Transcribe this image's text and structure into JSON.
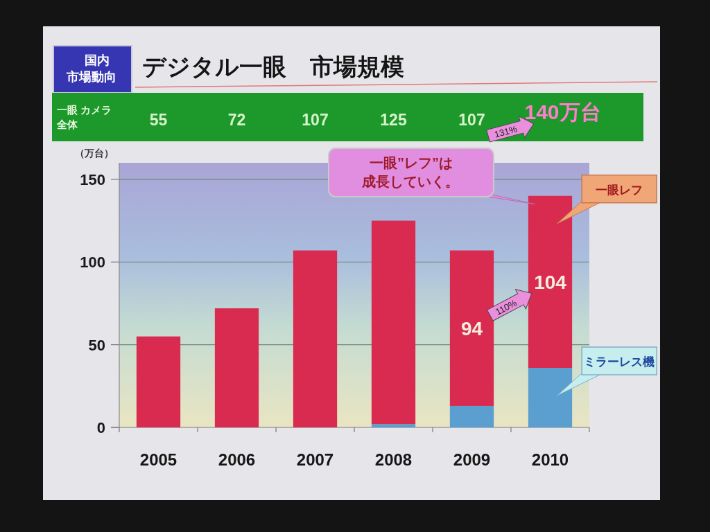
{
  "chart_data": {
    "type": "bar",
    "title": "デジタル一眼　市場規模",
    "subtitle": "国内市場動向",
    "ylabel": "（万台）",
    "categories": [
      "2005",
      "2006",
      "2007",
      "2008",
      "2009",
      "2010"
    ],
    "stacked": true,
    "series": [
      {
        "name": "ミラーレス機",
        "color": "#5b9fd0",
        "values": [
          null,
          null,
          null,
          2,
          13,
          36
        ]
      },
      {
        "name": "一眼レフ",
        "color": "#d92b50",
        "values": [
          55,
          72,
          107,
          123,
          94,
          104
        ],
        "value_labels": [
          null,
          null,
          null,
          null,
          "94",
          "104"
        ]
      }
    ],
    "ylim": [
      0,
      160
    ],
    "yticks": [
      0,
      50,
      100,
      150
    ],
    "grid": "y",
    "annotations": [
      "一眼 カメラ全体",
      "55",
      "72",
      "107",
      "125",
      "107",
      "140万台",
      "131%",
      "110%",
      "一眼”レフ”は成長していく。"
    ]
  }
}
